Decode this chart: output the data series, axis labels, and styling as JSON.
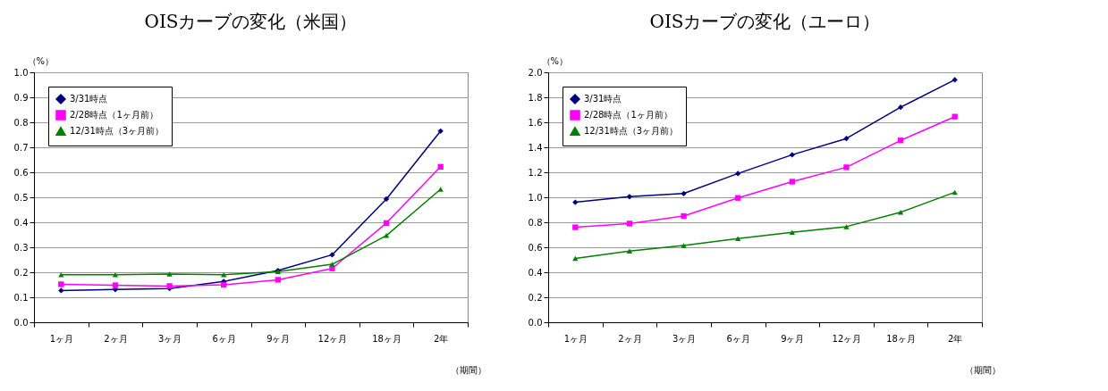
{
  "chart_data": [
    {
      "type": "line",
      "title": "OISカーブの変化（米国）",
      "ylabel": "（%）",
      "xlabel": "（期間）",
      "categories": [
        "1ヶ月",
        "2ヶ月",
        "3ヶ月",
        "6ヶ月",
        "9ヶ月",
        "12ヶ月",
        "18ヶ月",
        "2年"
      ],
      "ylim": [
        0,
        1
      ],
      "yticks": [
        {
          "value": 0,
          "label": "0.0"
        },
        0.1,
        0.2,
        0.3,
        0.4,
        0.5,
        0.6,
        0.7,
        0.8,
        0.9,
        {
          "value": 1,
          "label": "1.0"
        }
      ],
      "grid": "y",
      "legend": "top left",
      "series": [
        {
          "name": "3/31時点",
          "color": "#000080",
          "marker": "diamond",
          "values": [
            0.127,
            0.131,
            0.135,
            0.163,
            0.207,
            0.27,
            0.493,
            0.765
          ]
        },
        {
          "name": "2/28時点（1ヶ月前）",
          "color": "#ff00ff",
          "marker": "square",
          "values": [
            0.152,
            0.148,
            0.145,
            0.15,
            0.17,
            0.215,
            0.397,
            0.622
          ]
        },
        {
          "name": "12/31時点（3ヶ月前）",
          "color": "#008000",
          "marker": "triangle",
          "values": [
            0.19,
            0.19,
            0.193,
            0.19,
            0.203,
            0.232,
            0.347,
            0.532
          ]
        }
      ]
    },
    {
      "type": "line",
      "title": "OISカーブの変化（ユーロ）",
      "ylabel": "（%）",
      "xlabel": "（期間）",
      "categories": [
        "1ヶ月",
        "2ヶ月",
        "3ヶ月",
        "6ヶ月",
        "9ヶ月",
        "12ヶ月",
        "18ヶ月",
        "2年"
      ],
      "ylim": [
        0,
        2
      ],
      "yticks": [
        {
          "value": 0,
          "label": "0.0"
        },
        0.2,
        0.4,
        0.6,
        0.8,
        {
          "value": 1,
          "label": "1.0"
        },
        1.2,
        1.4,
        1.6,
        1.8,
        {
          "value": 2,
          "label": "2.0"
        }
      ],
      "grid": "y",
      "legend": "top left",
      "series": [
        {
          "name": "3/31時点",
          "color": "#000080",
          "marker": "diamond",
          "values": [
            0.96,
            1.005,
            1.03,
            1.19,
            1.34,
            1.47,
            1.72,
            1.94
          ]
        },
        {
          "name": "2/28時点（1ヶ月前）",
          "color": "#ff00ff",
          "marker": "square",
          "values": [
            0.76,
            0.79,
            0.85,
            0.995,
            1.125,
            1.24,
            1.455,
            1.645
          ]
        },
        {
          "name": "12/31時点（3ヶ月前）",
          "color": "#008000",
          "marker": "triangle",
          "values": [
            0.51,
            0.57,
            0.615,
            0.67,
            0.72,
            0.765,
            0.88,
            1.04
          ]
        }
      ]
    }
  ]
}
